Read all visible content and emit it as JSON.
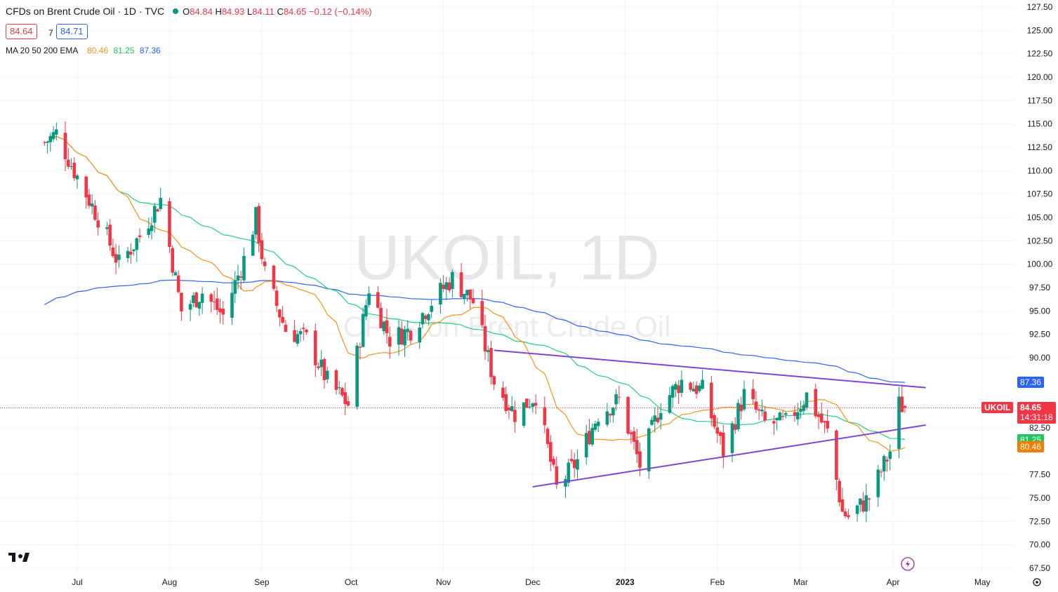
{
  "header": {
    "title": "CFDs on Brent Crude Oil · 1D · TVC",
    "open": "84.84",
    "high": "84.93",
    "low": "84.11",
    "close": "84.65",
    "change": "−0.12 (−0.14%)",
    "o_key": "O",
    "h_key": "H",
    "l_key": "L",
    "c_key": "C"
  },
  "quote": {
    "bid": "84.64",
    "spread": "7",
    "ask": "84.71"
  },
  "ma_legend": {
    "label": "MA 20 50 200 EMA",
    "ma20": "80.46",
    "ma50": "81.25",
    "ma200": "87.36"
  },
  "watermark": {
    "symbol": "UKOIL, 1D",
    "name": "CFDs on Brent Crude Oil"
  },
  "tags": {
    "ma200": "87.36",
    "symbol": "UKOIL",
    "last": "84.65",
    "countdown": "14:31:18",
    "ma50": "81.25",
    "ma20": "80.46"
  },
  "colors": {
    "up": "#089981",
    "down": "#f23645",
    "ma20": "#f7931a",
    "ma50": "#22d17a",
    "ma200": "#2962ff",
    "trendline": "#7e44d6"
  },
  "icons": [
    "tradingview-logo-icon",
    "lightning-icon",
    "settings-gear-icon"
  ],
  "chart_data": {
    "type": "candlestick",
    "symbol": "UKOIL",
    "interval": "1D",
    "ylim": [
      67.5,
      127.5
    ],
    "y_ticks": [
      "127.50",
      "125.00",
      "122.50",
      "120.00",
      "117.50",
      "115.00",
      "112.50",
      "110.00",
      "107.50",
      "105.00",
      "102.50",
      "100.00",
      "97.50",
      "95.00",
      "92.50",
      "90.00",
      "82.50",
      "77.50",
      "75.00",
      "72.50",
      "70.00",
      "67.50"
    ],
    "x_ticks": [
      "Jul",
      "Aug",
      "Sep",
      "Oct",
      "Nov",
      "Dec",
      "2023",
      "Feb",
      "Mar",
      "Apr",
      "May"
    ],
    "close_path": [
      {
        "date": "2022-06-20",
        "close": 113.0
      },
      {
        "date": "2022-06-24",
        "close": 114.0
      },
      {
        "date": "2022-06-30",
        "close": 110.0
      },
      {
        "date": "2022-07-08",
        "close": 105.0
      },
      {
        "date": "2022-07-15",
        "close": 100.0
      },
      {
        "date": "2022-07-22",
        "close": 103.0
      },
      {
        "date": "2022-07-29",
        "close": 107.0
      },
      {
        "date": "2022-08-05",
        "close": 95.0
      },
      {
        "date": "2022-08-12",
        "close": 97.0
      },
      {
        "date": "2022-08-19",
        "close": 94.5
      },
      {
        "date": "2022-08-26",
        "close": 100.5
      },
      {
        "date": "2022-08-30",
        "close": 105.0
      },
      {
        "date": "2022-09-02",
        "close": 99.0
      },
      {
        "date": "2022-09-09",
        "close": 93.0
      },
      {
        "date": "2022-09-16",
        "close": 92.0
      },
      {
        "date": "2022-09-23",
        "close": 87.5
      },
      {
        "date": "2022-09-30",
        "close": 85.0
      },
      {
        "date": "2022-10-07",
        "close": 97.5
      },
      {
        "date": "2022-10-14",
        "close": 92.0
      },
      {
        "date": "2022-10-21",
        "close": 93.0
      },
      {
        "date": "2022-10-28",
        "close": 96.0
      },
      {
        "date": "2022-11-04",
        "close": 98.5
      },
      {
        "date": "2022-11-11",
        "close": 96.0
      },
      {
        "date": "2022-11-18",
        "close": 87.5
      },
      {
        "date": "2022-11-25",
        "close": 84.0
      },
      {
        "date": "2022-12-02",
        "close": 86.0
      },
      {
        "date": "2022-12-09",
        "close": 76.0
      },
      {
        "date": "2022-12-16",
        "close": 79.0
      },
      {
        "date": "2022-12-23",
        "close": 84.0
      },
      {
        "date": "2022-12-30",
        "close": 85.5
      },
      {
        "date": "2023-01-06",
        "close": 78.5
      },
      {
        "date": "2023-01-13",
        "close": 85.0
      },
      {
        "date": "2023-01-20",
        "close": 87.5
      },
      {
        "date": "2023-01-27",
        "close": 86.5
      },
      {
        "date": "2023-02-03",
        "close": 80.0
      },
      {
        "date": "2023-02-10",
        "close": 86.0
      },
      {
        "date": "2023-02-17",
        "close": 83.0
      },
      {
        "date": "2023-02-24",
        "close": 83.0
      },
      {
        "date": "2023-03-03",
        "close": 86.0
      },
      {
        "date": "2023-03-10",
        "close": 82.0
      },
      {
        "date": "2023-03-15",
        "close": 73.5
      },
      {
        "date": "2023-03-17",
        "close": 73.0
      },
      {
        "date": "2023-03-24",
        "close": 75.0
      },
      {
        "date": "2023-03-31",
        "close": 80.0
      },
      {
        "date": "2023-04-03",
        "close": 85.0
      },
      {
        "date": "2023-04-05",
        "close": 84.65
      }
    ],
    "moving_averages": [
      {
        "name": "MA 20",
        "last": 80.46
      },
      {
        "name": "MA 50",
        "last": 81.25
      },
      {
        "name": "MA 200",
        "last": 87.36
      }
    ],
    "trendlines": [
      {
        "from": {
          "date": "2022-11-18",
          "price": 90.8
        },
        "to": {
          "date": "2023-04-12",
          "price": 86.8
        }
      },
      {
        "from": {
          "date": "2022-12-01",
          "price": 76.2
        },
        "to": {
          "date": "2023-04-12",
          "price": 82.8
        }
      }
    ],
    "last_price": 84.65
  }
}
